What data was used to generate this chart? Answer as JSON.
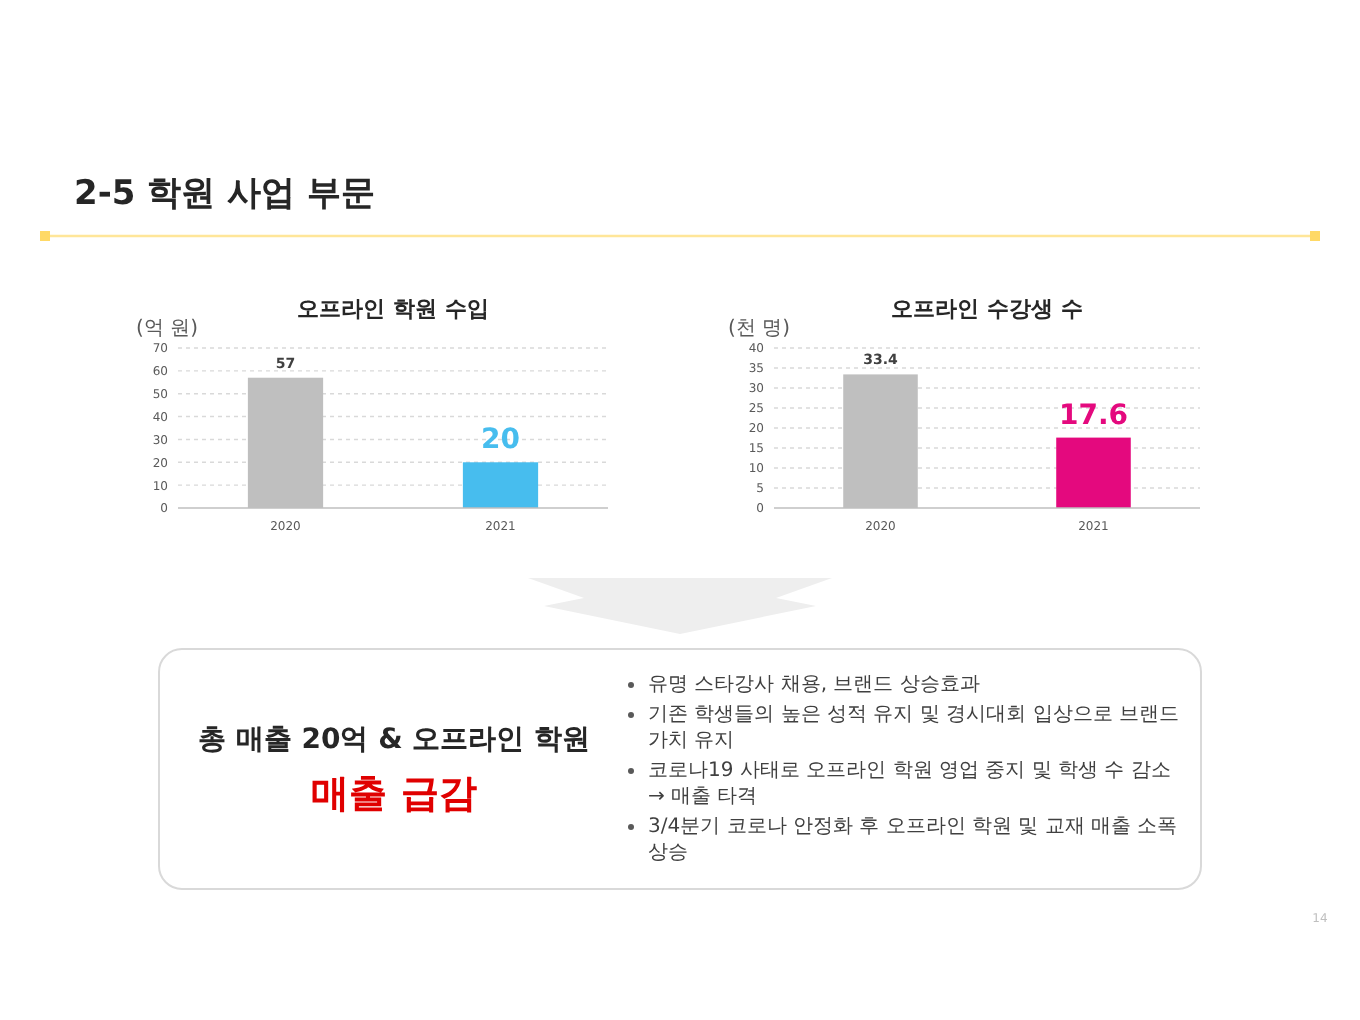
{
  "chart_data": [
    {
      "type": "other",
      "title": "2-5 학원 사업 부문",
      "annotations": [
        "14"
      ]
    },
    {
      "type": "bar",
      "title": "오프라인 학원 수입",
      "ylabel": "(억 원)",
      "categories": [
        "2020",
        "2021"
      ],
      "values": [
        57,
        20
      ],
      "colors": [
        "#bfbfbf",
        "#47bdee"
      ],
      "ylim": [
        0,
        70
      ],
      "yticks": [
        0,
        10,
        20,
        30,
        40,
        50,
        60,
        70
      ],
      "grid": "y",
      "data_labels": true
    },
    {
      "type": "bar",
      "title": "오프라인 수강생 수",
      "ylabel": "(천 명)",
      "categories": [
        "2020",
        "2021"
      ],
      "values": [
        33.4,
        17.6
      ],
      "colors": [
        "#bfbfbf",
        "#e4097e"
      ],
      "ylim": [
        0,
        40
      ],
      "yticks": [
        0,
        5,
        10,
        15,
        20,
        25,
        30,
        35,
        40
      ],
      "grid": "y",
      "data_labels": true
    },
    {
      "type": "other",
      "title": "총 매출 20억 & 오프라인 학원",
      "subtitle": "매출 급감",
      "annotations": [
        "유명 스타강사 채용, 브랜드 상승효과",
        "기존 학생들의 높은 성적 유지 및 경시대회 입상으로 브랜드 가치 유지",
        "코로나19 사태로 오프라인 학원 영업 중지 및 학생 수 감소 → 매출 타격",
        "3/4분기 코로나 안정화 후 오프라인 학원 및 교재 매출 소폭 상승"
      ]
    }
  ]
}
